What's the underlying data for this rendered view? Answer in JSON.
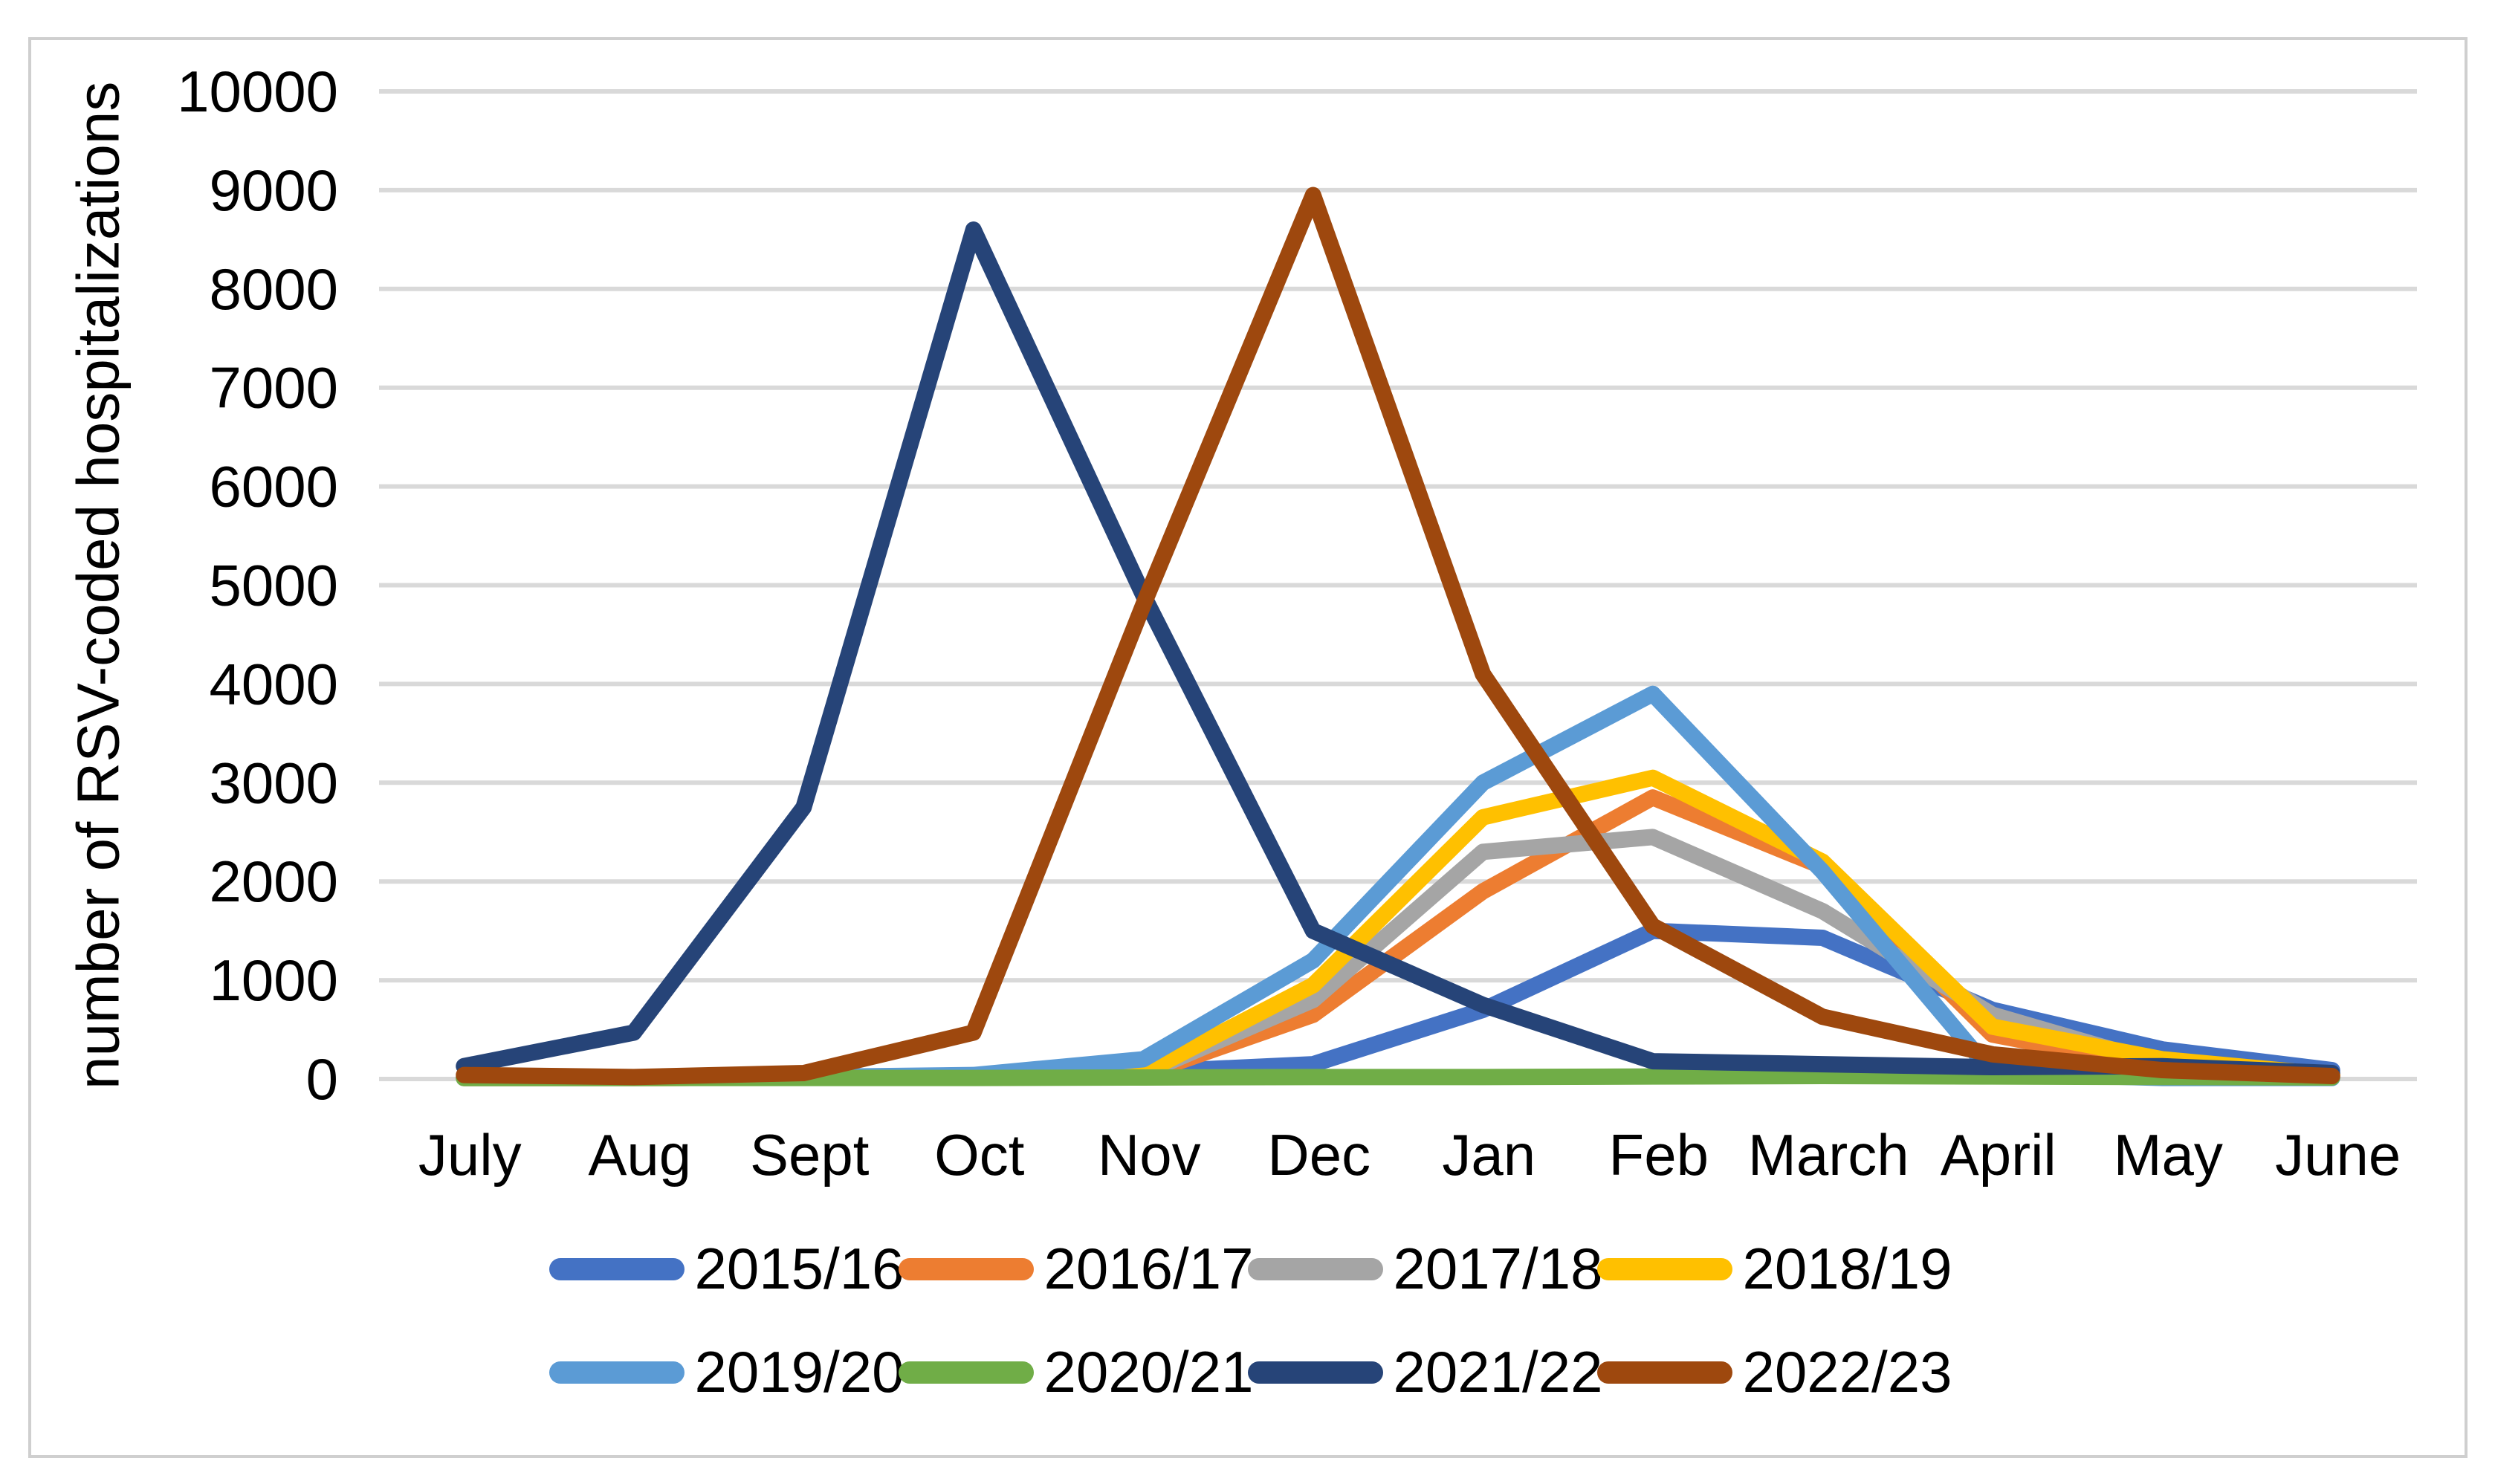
{
  "figure": {
    "background": "#FFFFFF",
    "border_color": "#CFCFCF",
    "gridline_color": "#D9D9D9"
  },
  "chart_data": {
    "type": "line",
    "title": "",
    "xlabel": "",
    "ylabel": "number of RSV-coded hospitalizations",
    "ylim": [
      0,
      10000
    ],
    "ytick_interval": 1000,
    "grid": "horizontal",
    "legend_position": "bottom",
    "categories": [
      "July",
      "Aug",
      "Sept",
      "Oct",
      "Nov",
      "Dec",
      "Jan",
      "Feb",
      "March",
      "April",
      "May",
      "June"
    ],
    "series": [
      {
        "name": "2015/16",
        "color": "#4472C4",
        "values": [
          20,
          15,
          20,
          30,
          70,
          150,
          700,
          1500,
          1430,
          700,
          300,
          90
        ]
      },
      {
        "name": "2016/17",
        "color": "#ED7D31",
        "values": [
          10,
          10,
          15,
          20,
          50,
          650,
          1900,
          2850,
          2150,
          450,
          120,
          40
        ]
      },
      {
        "name": "2017/18",
        "color": "#A5A5A5",
        "values": [
          10,
          10,
          15,
          25,
          60,
          800,
          2300,
          2450,
          1700,
          650,
          150,
          30
        ]
      },
      {
        "name": "2018/19",
        "color": "#FFC000",
        "values": [
          10,
          10,
          15,
          25,
          60,
          950,
          2650,
          3050,
          2200,
          530,
          200,
          40
        ]
      },
      {
        "name": "2019/20",
        "color": "#5B9BD5",
        "values": [
          10,
          10,
          20,
          40,
          200,
          1200,
          3000,
          3900,
          2100,
          60,
          10,
          10
        ]
      },
      {
        "name": "2020/21",
        "color": "#70AD47",
        "values": [
          10,
          10,
          10,
          10,
          15,
          20,
          20,
          25,
          30,
          25,
          20,
          15
        ]
      },
      {
        "name": "2021/22",
        "color": "#264478",
        "values": [
          130,
          470,
          2750,
          8600,
          4900,
          1500,
          750,
          180,
          150,
          120,
          130,
          60
        ]
      },
      {
        "name": "2022/23",
        "color": "#9E480E",
        "values": [
          40,
          20,
          60,
          470,
          4800,
          8950,
          4100,
          1550,
          630,
          250,
          90,
          30
        ]
      }
    ]
  }
}
